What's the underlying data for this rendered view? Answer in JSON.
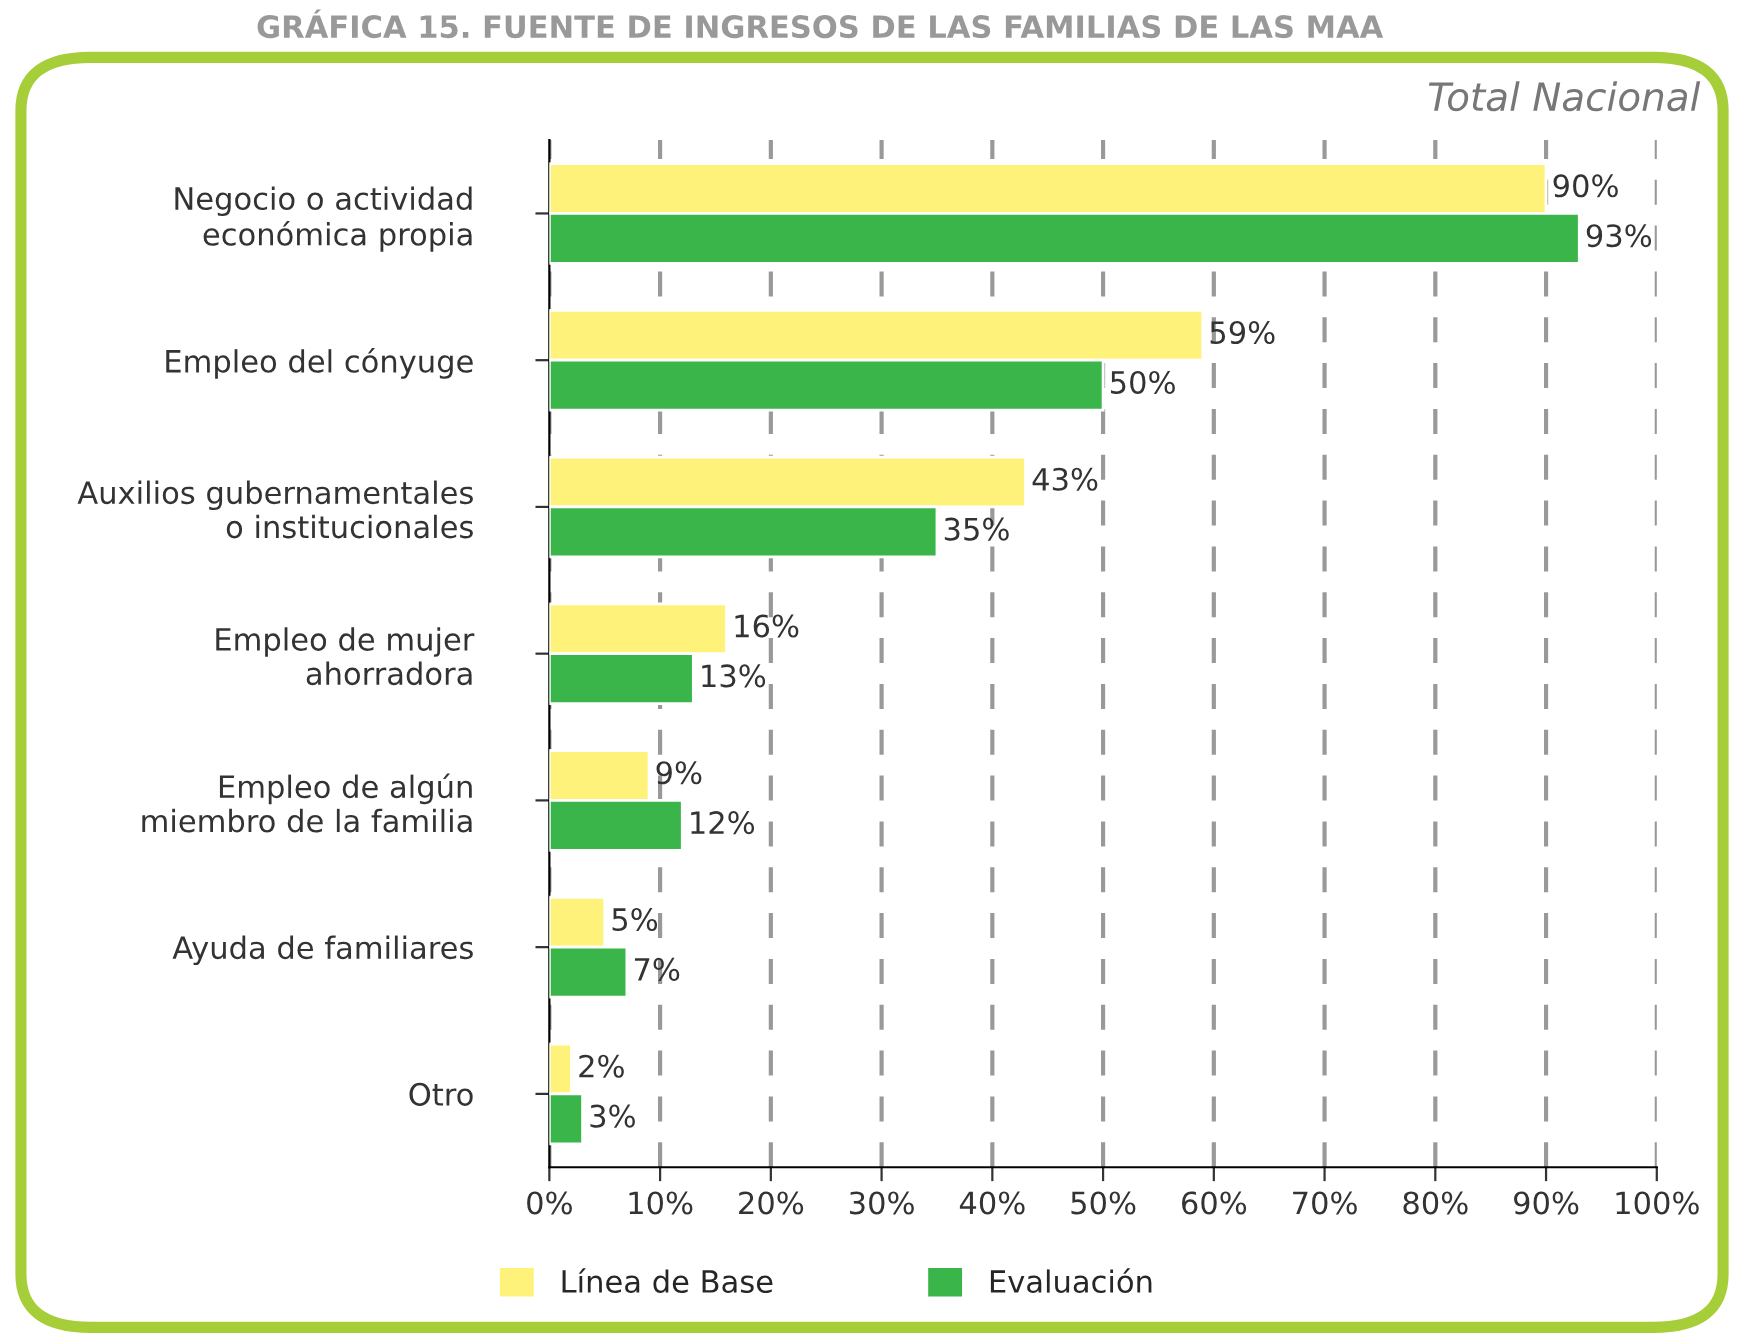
{
  "chart_data": {
    "type": "bar",
    "orientation": "horizontal",
    "title": "GRÁFICA 15. FUENTE DE INGRESOS DE LAS FAMILIAS DE LAS MAA",
    "subtitle": "Total Nacional",
    "categories": [
      "Negocio o actividad\neconómica propia",
      "Empleo del cónyuge",
      "Auxilios gubernamentales\no institucionales",
      "Empleo de mujer\nahorradora",
      "Empleo de algún\nmiembro de la familia",
      "Ayuda de familiares",
      "Otro"
    ],
    "series": [
      {
        "name": "Línea de Base",
        "color": "#fff27a",
        "values": [
          90,
          59,
          43,
          16,
          9,
          5,
          2
        ],
        "value_labels": [
          "90%",
          "59%",
          "43%",
          "16%",
          "9%",
          "5%",
          "2%"
        ]
      },
      {
        "name": "Evaluación",
        "color": "#39b54a",
        "values": [
          93,
          50,
          35,
          13,
          12,
          7,
          3
        ],
        "value_labels": [
          "93%",
          "50%",
          "35%",
          "13%",
          "12%",
          "7%",
          "3%"
        ]
      }
    ],
    "xlim": [
      0,
      100
    ],
    "xticks": [
      {
        "value": 0,
        "label": "0%"
      },
      {
        "value": 10,
        "label": "10%"
      },
      {
        "value": 20,
        "label": "20%"
      },
      {
        "value": 30,
        "label": "30%"
      },
      {
        "value": 40,
        "label": "40%"
      },
      {
        "value": 50,
        "label": "50%"
      },
      {
        "value": 60,
        "label": "60%"
      },
      {
        "value": 70,
        "label": "70%"
      },
      {
        "value": 80,
        "label": "80%"
      },
      {
        "value": 90,
        "label": "90%"
      },
      {
        "value": 100,
        "label": "100%"
      }
    ],
    "grid": "x",
    "legend": "bottom"
  }
}
